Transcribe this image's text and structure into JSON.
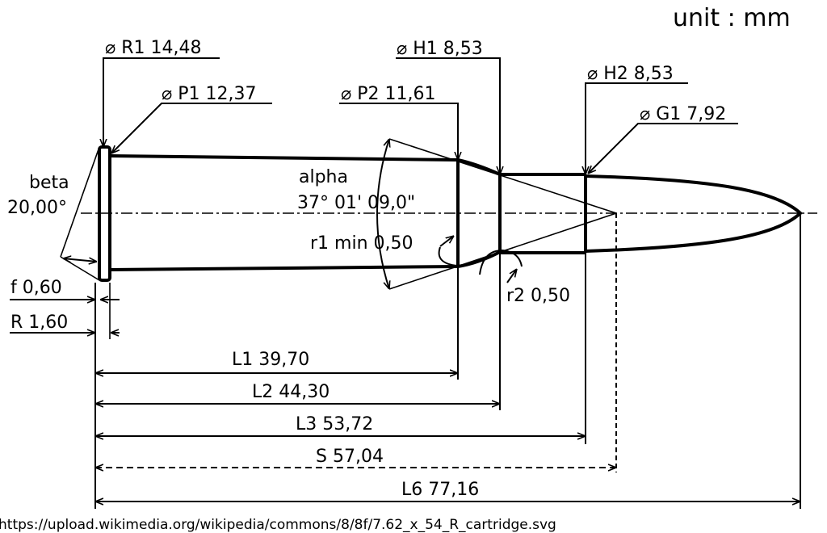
{
  "unit_label": "unit : mm",
  "source_url": "https://upload.wikimedia.org/wikipedia/commons/8/8f/7.62_x_54_R_cartridge.svg",
  "labels": {
    "r1": "⌀ R1 14,48",
    "p1": "⌀ P1 12,37",
    "p2": "⌀ P2 11,61",
    "h1": "⌀ H1 8,53",
    "h2": "⌀ H2 8,53",
    "g1": "⌀ G1 7,92",
    "beta_name": "beta",
    "beta_value": "20,00°",
    "alpha_name": "alpha",
    "alpha_value": "37° 01' 09,0\"",
    "r1min": "r1 min 0,50",
    "r2": "r2 0,50",
    "f": "f 0,60",
    "R": "R 1,60",
    "L1": "L1 39,70",
    "L2": "L2 44,30",
    "L3": "L3 53,72",
    "S": "S 57,04",
    "L6": "L6 77,16"
  }
}
